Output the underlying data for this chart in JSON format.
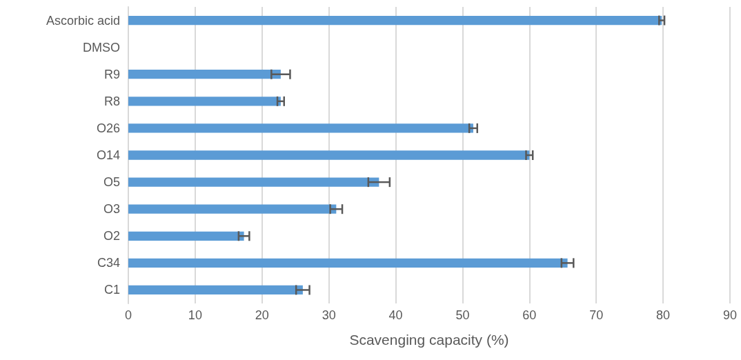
{
  "chart_data": {
    "type": "bar",
    "orientation": "horizontal",
    "xlabel": "Scavenging capacity (%)",
    "categories": [
      "Ascorbic acid",
      "DMSO",
      "R9",
      "R8",
      "O26",
      "O14",
      "O5",
      "O3",
      "O2",
      "C34",
      "C1"
    ],
    "values": [
      79.8,
      0,
      22.8,
      22.8,
      51.6,
      60.0,
      37.5,
      31.1,
      17.3,
      65.7,
      26.1
    ],
    "errors": [
      0.4,
      null,
      1.4,
      0.5,
      0.6,
      0.5,
      1.6,
      0.9,
      0.8,
      0.9,
      1.0
    ],
    "color": "#5b9bd5",
    "xlim": [
      0,
      90
    ],
    "xticks": [
      0,
      10,
      20,
      30,
      40,
      50,
      60,
      70,
      80,
      90
    ],
    "grid": "x"
  }
}
